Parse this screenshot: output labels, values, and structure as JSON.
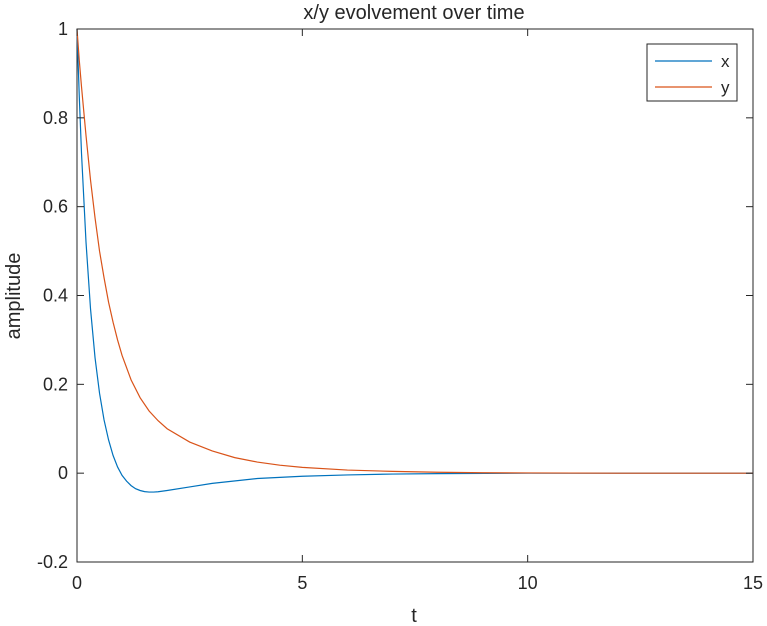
{
  "chart_data": {
    "type": "line",
    "title": "x/y evolvement over time",
    "xlabel": "t",
    "ylabel": "amplitude",
    "xlim": [
      0,
      15
    ],
    "ylim": [
      -0.2,
      1
    ],
    "xticks": [
      0,
      5,
      10,
      15
    ],
    "xtick_labels": [
      "0",
      "5",
      "10",
      "15"
    ],
    "yticks": [
      -0.2,
      0,
      0.2,
      0.4,
      0.6,
      0.8,
      1
    ],
    "ytick_labels": [
      "-0.2",
      "0",
      "0.2",
      "0.4",
      "0.6",
      "0.8",
      "1"
    ],
    "grid": false,
    "legend_position": "top-right",
    "series": [
      {
        "name": "x",
        "color": "#0072BD",
        "points": [
          [
            0,
            1
          ],
          [
            0.05,
            0.85
          ],
          [
            0.1,
            0.72
          ],
          [
            0.2,
            0.52
          ],
          [
            0.3,
            0.37
          ],
          [
            0.4,
            0.26
          ],
          [
            0.5,
            0.18
          ],
          [
            0.6,
            0.12
          ],
          [
            0.7,
            0.075
          ],
          [
            0.8,
            0.04
          ],
          [
            0.9,
            0.014
          ],
          [
            1.0,
            -0.005
          ],
          [
            1.1,
            -0.018
          ],
          [
            1.2,
            -0.028
          ],
          [
            1.3,
            -0.035
          ],
          [
            1.4,
            -0.039
          ],
          [
            1.5,
            -0.0415
          ],
          [
            1.6,
            -0.0425
          ],
          [
            1.7,
            -0.0425
          ],
          [
            1.8,
            -0.0418
          ],
          [
            2.0,
            -0.039
          ],
          [
            2.5,
            -0.031
          ],
          [
            3.0,
            -0.023
          ],
          [
            4.0,
            -0.012
          ],
          [
            5.0,
            -0.007
          ],
          [
            6.0,
            -0.004
          ],
          [
            7.0,
            -0.002
          ],
          [
            8.0,
            -0.001
          ],
          [
            10.0,
            0
          ],
          [
            12.0,
            0
          ],
          [
            15.0,
            0
          ]
        ]
      },
      {
        "name": "y",
        "color": "#D95319",
        "points": [
          [
            0,
            1
          ],
          [
            0.05,
            0.93
          ],
          [
            0.1,
            0.87
          ],
          [
            0.2,
            0.76
          ],
          [
            0.3,
            0.66
          ],
          [
            0.4,
            0.575
          ],
          [
            0.5,
            0.5
          ],
          [
            0.6,
            0.44
          ],
          [
            0.7,
            0.385
          ],
          [
            0.8,
            0.34
          ],
          [
            0.9,
            0.3
          ],
          [
            1.0,
            0.265
          ],
          [
            1.2,
            0.21
          ],
          [
            1.4,
            0.17
          ],
          [
            1.6,
            0.14
          ],
          [
            1.8,
            0.118
          ],
          [
            2.0,
            0.1
          ],
          [
            2.5,
            0.07
          ],
          [
            3.0,
            0.05
          ],
          [
            3.5,
            0.035
          ],
          [
            4.0,
            0.025
          ],
          [
            4.5,
            0.018
          ],
          [
            5.0,
            0.013
          ],
          [
            6.0,
            0.007
          ],
          [
            7.0,
            0.004
          ],
          [
            8.0,
            0.002
          ],
          [
            9.0,
            0.001
          ],
          [
            10.0,
            0.0005
          ],
          [
            12.0,
            0
          ],
          [
            15.0,
            0
          ]
        ]
      }
    ]
  }
}
